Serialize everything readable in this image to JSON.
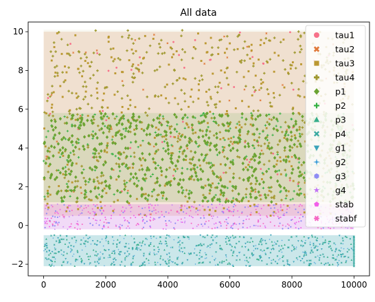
{
  "chart_data": {
    "type": "scatter",
    "title": "All data",
    "xlabel": "",
    "ylabel": "",
    "xlim": [
      -500,
      10500
    ],
    "ylim": [
      -2.6,
      10.5
    ],
    "x_ticks": [
      0,
      2000,
      4000,
      6000,
      8000,
      10000
    ],
    "x_tick_labels": [
      "0",
      "2000",
      "4000",
      "6000",
      "8000",
      "10000"
    ],
    "y_ticks": [
      -2,
      0,
      2,
      4,
      6,
      8,
      10
    ],
    "y_tick_labels": [
      "−2",
      "0",
      "2",
      "4",
      "6",
      "8",
      "10"
    ],
    "grid": false,
    "legend_position": "right",
    "x_extent": [
      0,
      10000
    ],
    "series": [
      {
        "name": "tau1",
        "color": "#f77189",
        "marker": "circle",
        "y_range": [
          0.5,
          10.0
        ]
      },
      {
        "name": "tau2",
        "color": "#e0793a",
        "marker": "x",
        "y_range": [
          0.5,
          10.0
        ]
      },
      {
        "name": "tau3",
        "color": "#bb9832",
        "marker": "square",
        "y_range": [
          0.5,
          10.0
        ]
      },
      {
        "name": "tau4",
        "color": "#a19a33",
        "marker": "plus",
        "y_range": [
          1.2,
          10.1
        ]
      },
      {
        "name": "p1",
        "color": "#6ba332",
        "marker": "diamond",
        "y_range": [
          1.2,
          5.8
        ]
      },
      {
        "name": "p2",
        "color": "#33b040",
        "marker": "thin-plus",
        "y_range": [
          1.2,
          5.8
        ]
      },
      {
        "name": "p3",
        "color": "#36ad8a",
        "marker": "triangle-up",
        "y_range": [
          -2.1,
          -0.5
        ]
      },
      {
        "name": "p4",
        "color": "#38a9a0",
        "marker": "x-filled",
        "y_range": [
          -2.1,
          -0.5
        ]
      },
      {
        "name": "g1",
        "color": "#3ba3ba",
        "marker": "triangle-down",
        "y_range": [
          -2.1,
          -0.5
        ]
      },
      {
        "name": "g2",
        "color": "#3e9ed9",
        "marker": "star4",
        "y_range": [
          -2.1,
          -0.5
        ]
      },
      {
        "name": "g3",
        "color": "#8e8cf4",
        "marker": "hexagon",
        "y_range": [
          -0.2,
          1.1
        ]
      },
      {
        "name": "g4",
        "color": "#c174f4",
        "marker": "star",
        "y_range": [
          -0.2,
          1.1
        ]
      },
      {
        "name": "stab",
        "color": "#f15fe9",
        "marker": "pentagon",
        "y_range": [
          -0.2,
          1.1
        ]
      },
      {
        "name": "stabf",
        "color": "#f565c2",
        "marker": "asterisk",
        "y_range": [
          -0.2,
          1.1
        ]
      }
    ]
  }
}
